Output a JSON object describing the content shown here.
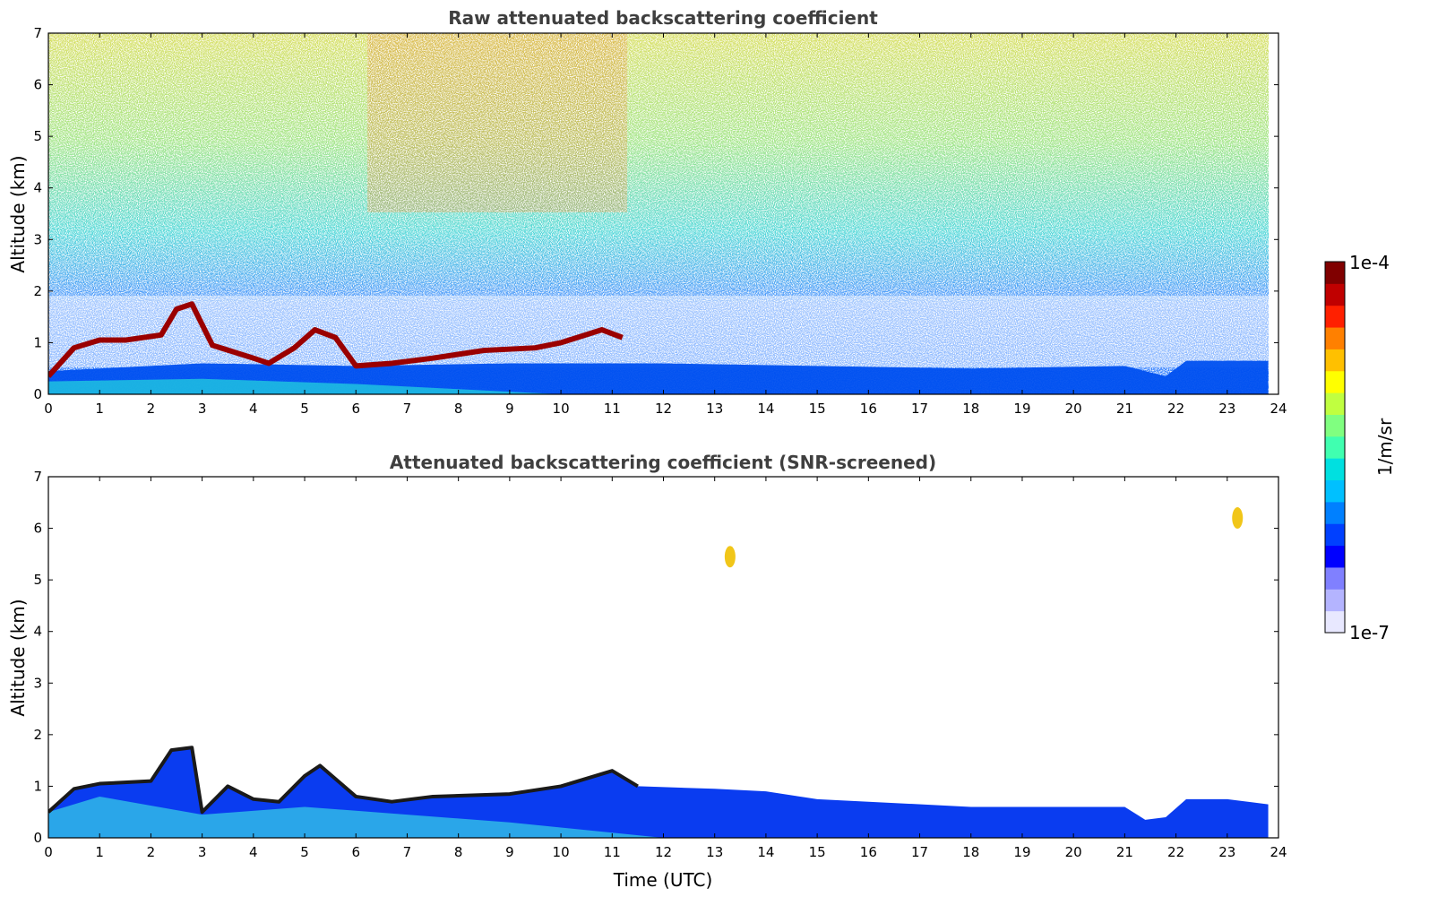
{
  "chart_data": [
    {
      "type": "heatmap",
      "title": "Raw attenuated backscattering coefficient",
      "xlabel": "",
      "ylabel": "Altitude (km)",
      "xlim": [
        0,
        24
      ],
      "ylim": [
        0,
        7
      ],
      "x_ticks": [
        "0",
        "1",
        "2",
        "3",
        "4",
        "5",
        "6",
        "7",
        "8",
        "9",
        "10",
        "11",
        "12",
        "13",
        "14",
        "15",
        "16",
        "17",
        "18",
        "19",
        "20",
        "21",
        "22",
        "23",
        "24"
      ],
      "y_ticks": [
        "0",
        "1",
        "2",
        "3",
        "4",
        "5",
        "6",
        "7"
      ],
      "data_extent_hours": 23.8,
      "cloud_layer_km": [
        [
          0.0,
          0.35
        ],
        [
          0.5,
          0.9
        ],
        [
          1.0,
          1.05
        ],
        [
          1.5,
          1.05
        ],
        [
          2.2,
          1.15
        ],
        [
          2.5,
          1.65
        ],
        [
          2.8,
          1.75
        ],
        [
          3.2,
          0.95
        ],
        [
          4.0,
          0.7
        ],
        [
          4.3,
          0.6
        ],
        [
          4.8,
          0.9
        ],
        [
          5.2,
          1.25
        ],
        [
          5.6,
          1.1
        ],
        [
          6.0,
          0.55
        ],
        [
          6.7,
          0.6
        ],
        [
          7.5,
          0.7
        ],
        [
          8.5,
          0.85
        ],
        [
          9.5,
          0.9
        ],
        [
          10.0,
          1.0
        ],
        [
          10.8,
          1.25
        ],
        [
          11.2,
          1.1
        ]
      ],
      "boundary_layer_top_km": [
        [
          0.0,
          0.45
        ],
        [
          3.0,
          0.6
        ],
        [
          6.0,
          0.55
        ],
        [
          9.0,
          0.6
        ],
        [
          12.0,
          0.6
        ],
        [
          15.0,
          0.55
        ],
        [
          18.0,
          0.5
        ],
        [
          21.0,
          0.55
        ],
        [
          21.8,
          0.35
        ],
        [
          22.2,
          0.65
        ],
        [
          23.8,
          0.65
        ]
      ],
      "grid": false
    },
    {
      "type": "heatmap",
      "title": "Attenuated backscattering coefficient (SNR-screened)",
      "xlabel": "Time (UTC)",
      "ylabel": "Altitude (km)",
      "xlim": [
        0,
        24
      ],
      "ylim": [
        0,
        7
      ],
      "x_ticks": [
        "0",
        "1",
        "2",
        "3",
        "4",
        "5",
        "6",
        "7",
        "8",
        "9",
        "10",
        "11",
        "12",
        "13",
        "14",
        "15",
        "16",
        "17",
        "18",
        "19",
        "20",
        "21",
        "22",
        "23",
        "24"
      ],
      "y_ticks": [
        "0",
        "1",
        "2",
        "3",
        "4",
        "5",
        "6",
        "7"
      ],
      "data_extent_hours": 23.8,
      "screened_layer_top_km": [
        [
          0.0,
          0.5
        ],
        [
          0.5,
          0.95
        ],
        [
          1.0,
          1.05
        ],
        [
          2.0,
          1.1
        ],
        [
          2.4,
          1.7
        ],
        [
          2.8,
          1.75
        ],
        [
          3.0,
          0.5
        ],
        [
          3.5,
          1.0
        ],
        [
          4.0,
          0.75
        ],
        [
          4.5,
          0.7
        ],
        [
          5.0,
          1.2
        ],
        [
          5.3,
          1.4
        ],
        [
          6.0,
          0.8
        ],
        [
          6.7,
          0.7
        ],
        [
          7.5,
          0.8
        ],
        [
          9.0,
          0.85
        ],
        [
          10.0,
          1.0
        ],
        [
          11.0,
          1.3
        ],
        [
          11.5,
          1.0
        ],
        [
          13.0,
          0.95
        ],
        [
          14.0,
          0.9
        ],
        [
          15.0,
          0.75
        ],
        [
          18.0,
          0.6
        ],
        [
          21.0,
          0.6
        ],
        [
          21.4,
          0.35
        ],
        [
          21.8,
          0.4
        ],
        [
          22.2,
          0.75
        ],
        [
          23.0,
          0.75
        ],
        [
          23.8,
          0.65
        ]
      ],
      "elevated_features": [
        {
          "x": 23.2,
          "y": 6.2
        },
        {
          "x": 13.3,
          "y": 5.45
        }
      ],
      "grid": false
    }
  ],
  "colorbar": {
    "label": "1/m/sr",
    "max_label": "1e-4",
    "min_label": "1e-7",
    "scale": "log",
    "range": [
      1e-07,
      0.0001
    ],
    "colors": [
      "#e8e8ff",
      "#b4b4ff",
      "#8080ff",
      "#0000ff",
      "#0040ff",
      "#0080ff",
      "#00c0ff",
      "#00e0e0",
      "#40ffb0",
      "#80ff80",
      "#c0ff40",
      "#ffff00",
      "#ffc000",
      "#ff8000",
      "#ff2000",
      "#c00000",
      "#800000"
    ]
  }
}
